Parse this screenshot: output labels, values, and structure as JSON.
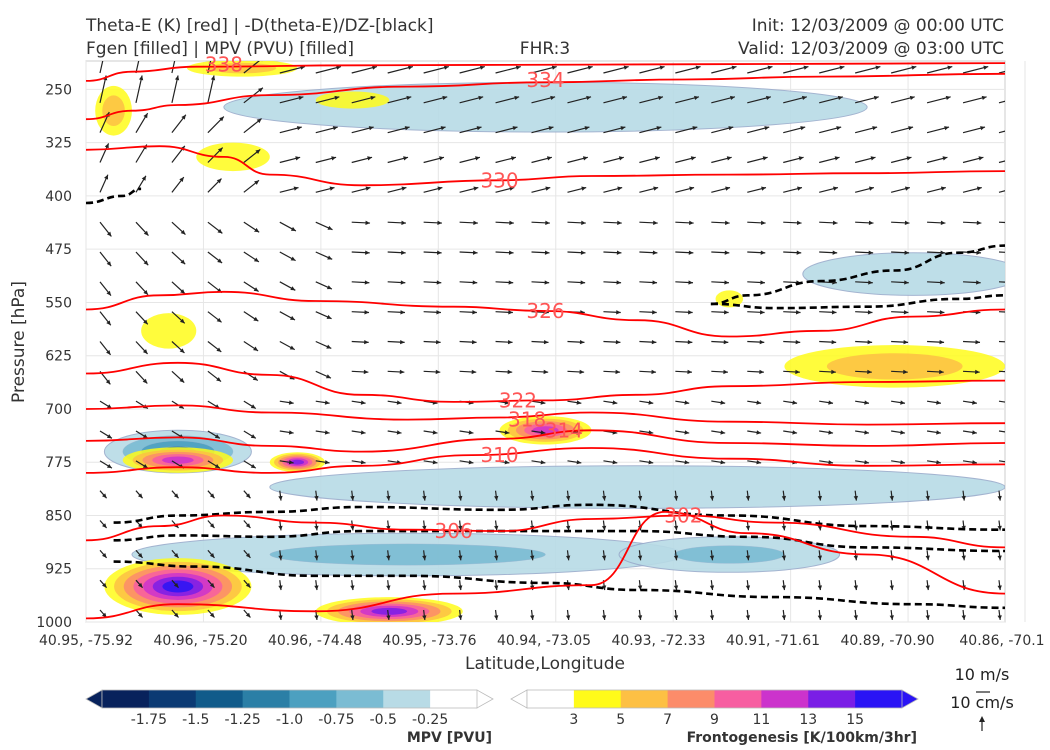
{
  "header": {
    "title_left_1": "Theta-E (K) [red] | -D(theta-E)/DZ-[black]",
    "title_left_2": "Fgen [filled] | MPV (PVU) [filled]",
    "fhr": "FHR:3",
    "init": "Init: 12/03/2009 @ 00:00 UTC",
    "valid": "Valid: 12/03/2009 @ 03:00 UTC"
  },
  "chart_data": {
    "type": "cross-section",
    "xlabel": "Latitude,Longitude",
    "ylabel": "Pressure [hPa]",
    "y_axis_inverted": true,
    "ylim": [
      1000,
      210
    ],
    "y_ticks": [
      "250",
      "325",
      "400",
      "475",
      "550",
      "625",
      "700",
      "775",
      "850",
      "925",
      "1000"
    ],
    "y_tick_values": [
      250,
      325,
      400,
      475,
      550,
      625,
      700,
      775,
      850,
      925,
      1000
    ],
    "x_ticks": [
      "40.95, -75.92",
      "40.96, -75.20",
      "40.96, -74.48",
      "40.95, -73.76",
      "40.94, -73.05",
      "40.93, -72.33",
      "40.91, -71.61",
      "40.89, -70.90",
      "40.86, -70.1"
    ],
    "theta_e_contours": [
      {
        "label": "338",
        "level": 338,
        "color": "#ff0000",
        "points": [
          [
            0,
            238
          ],
          [
            0.05,
            225
          ],
          [
            0.12,
            218
          ],
          [
            0.3,
            216
          ],
          [
            0.55,
            215
          ],
          [
            0.8,
            214
          ],
          [
            1,
            213
          ]
        ]
      },
      {
        "label": "334",
        "level": 334,
        "color": "#ff0000",
        "points": [
          [
            0,
            292
          ],
          [
            0.05,
            280
          ],
          [
            0.1,
            272
          ],
          [
            0.2,
            258
          ],
          [
            0.35,
            246
          ],
          [
            0.5,
            240
          ],
          [
            0.65,
            236
          ],
          [
            0.8,
            232
          ],
          [
            1,
            228
          ]
        ]
      },
      {
        "label": "330",
        "level": 330,
        "color": "#ff0000",
        "points": [
          [
            0,
            335
          ],
          [
            0.08,
            330
          ],
          [
            0.15,
            345
          ],
          [
            0.2,
            370
          ],
          [
            0.3,
            385
          ],
          [
            0.45,
            378
          ],
          [
            0.55,
            372
          ],
          [
            0.7,
            370
          ],
          [
            0.85,
            368
          ],
          [
            1,
            365
          ]
        ]
      },
      {
        "label": "326",
        "level": 326,
        "color": "#ff0000",
        "points": [
          [
            0,
            560
          ],
          [
            0.08,
            540
          ],
          [
            0.15,
            535
          ],
          [
            0.25,
            548
          ],
          [
            0.4,
            556
          ],
          [
            0.5,
            562
          ],
          [
            0.6,
            575
          ],
          [
            0.7,
            598
          ],
          [
            0.8,
            590
          ],
          [
            0.9,
            570
          ],
          [
            1,
            560
          ]
        ]
      },
      {
        "label": "322",
        "level": 322,
        "color": "#ff0000",
        "points": [
          [
            0,
            650
          ],
          [
            0.1,
            635
          ],
          [
            0.2,
            652
          ],
          [
            0.3,
            680
          ],
          [
            0.4,
            690
          ],
          [
            0.5,
            688
          ],
          [
            0.6,
            680
          ],
          [
            0.7,
            668
          ],
          [
            0.85,
            662
          ],
          [
            1,
            660
          ]
        ]
      },
      {
        "label": "318",
        "level": 318,
        "color": "#ff0000",
        "points": [
          [
            0,
            700
          ],
          [
            0.1,
            695
          ],
          [
            0.2,
            705
          ],
          [
            0.35,
            715
          ],
          [
            0.45,
            712
          ],
          [
            0.55,
            705
          ],
          [
            0.7,
            718
          ],
          [
            0.85,
            722
          ],
          [
            1,
            720
          ]
        ]
      },
      {
        "label": "314",
        "level": 314,
        "color": "#ff0000",
        "points": [
          [
            0,
            745
          ],
          [
            0.1,
            740
          ],
          [
            0.2,
            752
          ],
          [
            0.3,
            760
          ],
          [
            0.45,
            742
          ],
          [
            0.55,
            730
          ],
          [
            0.7,
            748
          ],
          [
            0.85,
            752
          ],
          [
            1,
            748
          ]
        ]
      },
      {
        "label": "310",
        "level": 310,
        "color": "#ff0000",
        "points": [
          [
            0,
            790
          ],
          [
            0.1,
            782
          ],
          [
            0.2,
            790
          ],
          [
            0.3,
            780
          ],
          [
            0.42,
            765
          ],
          [
            0.55,
            755
          ],
          [
            0.7,
            770
          ],
          [
            0.85,
            780
          ],
          [
            1,
            778
          ]
        ]
      },
      {
        "label": "306",
        "level": 306,
        "color": "#ff0000",
        "points": [
          [
            0,
            885
          ],
          [
            0.08,
            865
          ],
          [
            0.15,
            850
          ],
          [
            0.25,
            860
          ],
          [
            0.35,
            870
          ],
          [
            0.45,
            872
          ],
          [
            0.55,
            855
          ],
          [
            0.65,
            850
          ],
          [
            0.75,
            860
          ],
          [
            0.9,
            880
          ],
          [
            1,
            895
          ]
        ]
      },
      {
        "label": "302",
        "level": 302,
        "color": "#ff0000",
        "points": [
          [
            0,
            995
          ],
          [
            0.1,
            975
          ],
          [
            0.25,
            985
          ],
          [
            0.4,
            960
          ],
          [
            0.55,
            948
          ],
          [
            0.63,
            845
          ],
          [
            0.72,
            875
          ],
          [
            0.85,
            905
          ],
          [
            1,
            960
          ]
        ]
      }
    ],
    "dtheta_dz_contours": [
      {
        "color": "#000000",
        "style": "dashed",
        "points": [
          [
            0,
            410
          ],
          [
            0.04,
            400
          ],
          [
            0.06,
            390
          ]
        ]
      },
      {
        "color": "#000000",
        "style": "dashed",
        "points": [
          [
            0.68,
            552
          ],
          [
            0.72,
            540
          ],
          [
            0.8,
            520
          ],
          [
            0.88,
            505
          ],
          [
            0.95,
            480
          ],
          [
            1,
            470
          ]
        ]
      },
      {
        "color": "#000000",
        "style": "dashed",
        "points": [
          [
            0.68,
            552
          ],
          [
            0.75,
            558
          ],
          [
            0.85,
            556
          ],
          [
            0.95,
            545
          ],
          [
            1,
            540
          ]
        ]
      },
      {
        "color": "#000000",
        "style": "dashed",
        "points": [
          [
            0.03,
            860
          ],
          [
            0.1,
            850
          ],
          [
            0.2,
            845
          ],
          [
            0.3,
            838
          ],
          [
            0.45,
            842
          ],
          [
            0.55,
            835
          ],
          [
            0.7,
            850
          ],
          [
            0.85,
            865
          ],
          [
            1,
            870
          ]
        ]
      },
      {
        "color": "#000000",
        "style": "dashed",
        "points": [
          [
            0.03,
            885
          ],
          [
            0.1,
            878
          ],
          [
            0.2,
            880
          ],
          [
            0.3,
            872
          ],
          [
            0.45,
            872
          ],
          [
            0.6,
            872
          ],
          [
            0.72,
            880
          ],
          [
            0.85,
            895
          ],
          [
            1,
            900
          ]
        ]
      },
      {
        "color": "#000000",
        "style": "dashed",
        "points": [
          [
            0.03,
            915
          ],
          [
            0.12,
            922
          ],
          [
            0.25,
            935
          ],
          [
            0.35,
            935
          ],
          [
            0.5,
            945
          ],
          [
            0.6,
            955
          ],
          [
            0.75,
            965
          ],
          [
            0.9,
            975
          ],
          [
            1,
            980
          ]
        ]
      }
    ],
    "frontogenesis_blobs": [
      {
        "cx": 0.1,
        "cy": 772,
        "rx": 0.06,
        "ry": 18,
        "level": 11
      },
      {
        "cx": 0.23,
        "cy": 775,
        "rx": 0.03,
        "ry": 14,
        "level": 13
      },
      {
        "cx": 0.5,
        "cy": 730,
        "rx": 0.05,
        "ry": 20,
        "level": 11
      },
      {
        "cx": 0.1,
        "cy": 950,
        "rx": 0.08,
        "ry": 40,
        "level": 15
      },
      {
        "cx": 0.33,
        "cy": 985,
        "rx": 0.08,
        "ry": 20,
        "level": 13
      },
      {
        "cx": 0.16,
        "cy": 345,
        "rx": 0.04,
        "ry": 20,
        "level": 3
      },
      {
        "cx": 0.03,
        "cy": 280,
        "rx": 0.02,
        "ry": 35,
        "level": 5
      },
      {
        "cx": 0.09,
        "cy": 590,
        "rx": 0.03,
        "ry": 25,
        "level": 3
      },
      {
        "cx": 0.88,
        "cy": 640,
        "rx": 0.12,
        "ry": 30,
        "level": 5
      },
      {
        "cx": 0.7,
        "cy": 545,
        "rx": 0.015,
        "ry": 12,
        "level": 3
      },
      {
        "cx": 0.29,
        "cy": 265,
        "rx": 0.04,
        "ry": 12,
        "level": 3
      },
      {
        "cx": 0.17,
        "cy": 220,
        "rx": 0.06,
        "ry": 12,
        "level": 5
      }
    ],
    "mpv_blobs": [
      {
        "cx": 0.1,
        "cy": 760,
        "rx": 0.08,
        "ry": 30,
        "level": -1.0
      },
      {
        "cx": 0.35,
        "cy": 905,
        "rx": 0.3,
        "ry": 30,
        "level": -0.5
      },
      {
        "cx": 0.7,
        "cy": 905,
        "rx": 0.12,
        "ry": 25,
        "level": -0.5
      },
      {
        "cx": 0.5,
        "cy": 275,
        "rx": 0.35,
        "ry": 35,
        "level": -0.25
      },
      {
        "cx": 0.6,
        "cy": 810,
        "rx": 0.4,
        "ry": 30,
        "level": -0.25
      },
      {
        "cx": 0.9,
        "cy": 510,
        "rx": 0.12,
        "ry": 30,
        "level": -0.25
      }
    ],
    "wind_vectors": {
      "reference": [
        "10 m/s",
        "10 cm/s"
      ]
    },
    "colorbars": [
      {
        "title": "MPV [PVU]",
        "ticks": [
          "-1.75",
          "-1.5",
          "-1.25",
          "-1.0",
          "-0.75",
          "-0.5",
          "-0.25"
        ],
        "colors": [
          "#08225c",
          "#0b3a73",
          "#115b8a",
          "#2b7fa6",
          "#4ca0c0",
          "#7bbcd3",
          "#b8dbe6",
          "#ffffff"
        ]
      },
      {
        "title": "Frontogenesis [K/100km/3hr]",
        "ticks": [
          "3",
          "5",
          "7",
          "9",
          "11",
          "13",
          "15"
        ],
        "colors": [
          "#ffffff",
          "#fffb1a",
          "#fdc044",
          "#fc8c6a",
          "#f75ea1",
          "#cc33cc",
          "#7a1ee6",
          "#2a14f5"
        ]
      }
    ]
  }
}
